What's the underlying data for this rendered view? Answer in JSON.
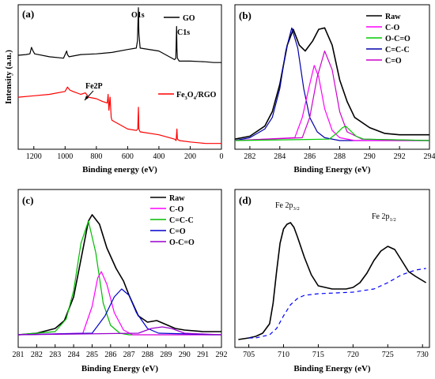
{
  "chart_data": [
    {
      "id": "a",
      "type": "line",
      "panel_label": "(a)",
      "xlabel": "Binding energy (eV)",
      "ylabel": "Intensity (a.u.)",
      "xlim": [
        1300,
        0
      ],
      "ylim": [
        0,
        1
      ],
      "xticks": [
        1200,
        1000,
        800,
        600,
        400,
        200,
        0
      ],
      "legend": [
        {
          "name": "GO",
          "color": "#000000"
        },
        {
          "name": "Fe3O4/RGO",
          "label_main": "Fe",
          "label_sub1": "3",
          "label_mid": "O",
          "label_sub2": "4",
          "label_end": "/RGO",
          "color": "#ff0000"
        }
      ],
      "annotations": [
        {
          "text": "O1s",
          "x": 531,
          "y": 0.96
        },
        {
          "text": "C1s",
          "x": 285,
          "y": 0.81
        },
        {
          "text": "Fe2P",
          "x": 760,
          "y": 0.405
        }
      ],
      "series": [
        {
          "name": "GO",
          "color": "#000000",
          "x": [
            1300,
            1250,
            1225,
            1215,
            1205,
            1195,
            1100,
            1010,
            1000,
            990,
            985,
            975,
            900,
            800,
            700,
            600,
            545,
            537,
            531,
            528,
            520,
            400,
            300,
            292,
            287,
            285,
            282,
            270,
            200,
            100,
            50,
            0
          ],
          "y": [
            0.65,
            0.655,
            0.66,
            0.705,
            0.68,
            0.66,
            0.64,
            0.63,
            0.655,
            0.68,
            0.655,
            0.64,
            0.655,
            0.66,
            0.67,
            0.69,
            0.7,
            0.75,
            0.98,
            0.8,
            0.7,
            0.68,
            0.62,
            0.63,
            0.85,
            0.7,
            0.63,
            0.61,
            0.61,
            0.605,
            0.6,
            0.6
          ]
        },
        {
          "name": "Fe3O4/RGO",
          "color": "#ff0000",
          "x": [
            1300,
            1200,
            1100,
            1000,
            985,
            970,
            950,
            900,
            870,
            850,
            800,
            760,
            730,
            725,
            720,
            712,
            705,
            700,
            600,
            545,
            535,
            531,
            528,
            520,
            400,
            300,
            290,
            285,
            282,
            270,
            200,
            100,
            50,
            0
          ],
          "y": [
            0.36,
            0.37,
            0.38,
            0.4,
            0.43,
            0.41,
            0.4,
            0.38,
            0.39,
            0.36,
            0.35,
            0.33,
            0.32,
            0.38,
            0.27,
            0.36,
            0.22,
            0.2,
            0.14,
            0.13,
            0.14,
            0.29,
            0.14,
            0.12,
            0.1,
            0.07,
            0.06,
            0.14,
            0.07,
            0.06,
            0.05,
            0.04,
            0.04,
            0.04
          ]
        }
      ]
    },
    {
      "id": "b",
      "type": "line",
      "panel_label": "(b)",
      "xlabel": "Binding Energy (eV)",
      "xlim": [
        281,
        294
      ],
      "ylim": [
        0,
        1
      ],
      "xticks": [
        282,
        284,
        286,
        288,
        290,
        292,
        294
      ],
      "legend": [
        {
          "name": "Raw",
          "color": "#000000"
        },
        {
          "name": "C-O",
          "color": "#ff00ff"
        },
        {
          "name": "O-C=O",
          "color": "#00cc00"
        },
        {
          "name": "C=C-C",
          "color": "#0000aa"
        },
        {
          "name": "C=O",
          "color": "#cc00cc"
        }
      ],
      "series": [
        {
          "name": "Raw",
          "color": "#000000",
          "x": [
            281,
            282,
            283,
            283.5,
            284,
            284.5,
            284.9,
            285.3,
            285.7,
            286.2,
            286.6,
            287,
            287.5,
            288,
            288.5,
            289,
            290,
            291,
            292,
            293,
            294
          ],
          "y": [
            0.07,
            0.09,
            0.16,
            0.26,
            0.45,
            0.72,
            0.83,
            0.72,
            0.68,
            0.75,
            0.83,
            0.84,
            0.72,
            0.48,
            0.33,
            0.22,
            0.15,
            0.11,
            0.1,
            0.1,
            0.1
          ]
        },
        {
          "name": "C=C-C",
          "color": "#0000aa",
          "x": [
            281,
            282,
            283,
            283.5,
            284,
            284.4,
            284.8,
            285.2,
            285.6,
            286,
            286.5,
            287,
            288,
            289,
            294
          ],
          "y": [
            0.06,
            0.08,
            0.14,
            0.22,
            0.42,
            0.68,
            0.84,
            0.7,
            0.42,
            0.22,
            0.12,
            0.08,
            0.06,
            0.06,
            0.06
          ]
        },
        {
          "name": "C-O",
          "color": "#ff00ff",
          "x": [
            281,
            285,
            285.5,
            286,
            286.3,
            286.6,
            287,
            287.5,
            288,
            289,
            294
          ],
          "y": [
            0.06,
            0.08,
            0.22,
            0.45,
            0.58,
            0.5,
            0.28,
            0.13,
            0.08,
            0.06,
            0.06
          ]
        },
        {
          "name": "C=O",
          "color": "#cc00cc",
          "x": [
            281,
            285.5,
            286,
            286.5,
            287,
            287.5,
            288,
            288.5,
            289.5,
            294
          ],
          "y": [
            0.06,
            0.08,
            0.22,
            0.5,
            0.68,
            0.55,
            0.26,
            0.12,
            0.07,
            0.06
          ]
        },
        {
          "name": "O-C=O",
          "color": "#00cc00",
          "x": [
            281,
            287.3,
            287.8,
            288.2,
            288.4,
            288.7,
            289.1,
            289.6,
            294
          ],
          "y": [
            0.06,
            0.07,
            0.11,
            0.15,
            0.16,
            0.13,
            0.09,
            0.07,
            0.06
          ]
        }
      ]
    },
    {
      "id": "c",
      "type": "line",
      "panel_label": "(c)",
      "xlabel": "Binding Energy (eV)",
      "xlim": [
        281,
        292
      ],
      "ylim": [
        0,
        1
      ],
      "xticks": [
        281,
        282,
        283,
        284,
        285,
        286,
        287,
        288,
        289,
        290,
        291,
        292
      ],
      "legend": [
        {
          "name": "Raw",
          "color": "#000000"
        },
        {
          "name": "C-O",
          "color": "#ff00ff"
        },
        {
          "name": "C=C-C",
          "color": "#00bb00"
        },
        {
          "name": "C=O",
          "color": "#0000cc"
        },
        {
          "name": "O-C=O",
          "color": "#9900cc"
        }
      ],
      "series": [
        {
          "name": "Raw",
          "color": "#000000",
          "x": [
            281,
            282,
            283,
            283.5,
            284,
            284.5,
            284.8,
            285,
            285.4,
            285.8,
            286.3,
            286.7,
            287,
            287.5,
            288,
            288.5,
            288.9,
            289.5,
            290,
            291,
            292
          ],
          "y": [
            0.08,
            0.09,
            0.12,
            0.17,
            0.32,
            0.62,
            0.8,
            0.84,
            0.78,
            0.63,
            0.5,
            0.42,
            0.33,
            0.2,
            0.16,
            0.17,
            0.15,
            0.12,
            0.11,
            0.1,
            0.1
          ]
        },
        {
          "name": "C=C-C",
          "color": "#00bb00",
          "x": [
            281,
            283,
            283.6,
            284,
            284.4,
            284.8,
            285.2,
            285.6,
            286,
            286.5,
            287,
            292
          ],
          "y": [
            0.08,
            0.1,
            0.18,
            0.36,
            0.66,
            0.8,
            0.6,
            0.28,
            0.14,
            0.09,
            0.08,
            0.08
          ]
        },
        {
          "name": "C-O",
          "color": "#ff00ff",
          "x": [
            281,
            284.5,
            285,
            285.3,
            285.5,
            285.8,
            286.2,
            286.7,
            287.2,
            292
          ],
          "y": [
            0.08,
            0.09,
            0.26,
            0.44,
            0.48,
            0.4,
            0.22,
            0.11,
            0.08,
            0.08
          ]
        },
        {
          "name": "C=O",
          "color": "#0000cc",
          "x": [
            281,
            285,
            285.7,
            286.2,
            286.6,
            287,
            287.4,
            288,
            288.6,
            292
          ],
          "y": [
            0.08,
            0.09,
            0.2,
            0.32,
            0.37,
            0.33,
            0.22,
            0.12,
            0.09,
            0.08
          ]
        },
        {
          "name": "O-C=O",
          "color": "#9900cc",
          "x": [
            281,
            287.5,
            288.2,
            288.8,
            289.3,
            290,
            292
          ],
          "y": [
            0.08,
            0.09,
            0.12,
            0.13,
            0.12,
            0.09,
            0.08
          ]
        }
      ]
    },
    {
      "id": "d",
      "type": "line",
      "panel_label": "(d)",
      "xlabel": "Binding Energy (eV)",
      "xlim": [
        703,
        731
      ],
      "ylim": [
        0,
        1
      ],
      "xticks": [
        705,
        710,
        715,
        720,
        725,
        730
      ],
      "annotations": [
        {
          "text_main": "Fe 2p",
          "text_sub": "3/2",
          "x": 710.6,
          "y": 0.86
        },
        {
          "text_main": "Fe 2p",
          "text_sub": "1/2",
          "x": 725,
          "y": 0.74
        }
      ],
      "series": [
        {
          "name": "raw",
          "color": "#000000",
          "x": [
            703.5,
            705,
            706,
            707,
            708,
            708.5,
            709,
            709.5,
            710,
            710.5,
            711,
            711.5,
            712,
            713,
            714,
            715,
            716,
            717,
            718,
            719,
            720,
            721,
            722,
            723,
            724,
            725,
            726,
            727,
            728,
            729,
            730.5
          ],
          "y": [
            0.05,
            0.06,
            0.07,
            0.09,
            0.15,
            0.28,
            0.48,
            0.66,
            0.75,
            0.78,
            0.79,
            0.76,
            0.7,
            0.57,
            0.46,
            0.39,
            0.38,
            0.37,
            0.37,
            0.37,
            0.38,
            0.41,
            0.47,
            0.55,
            0.61,
            0.64,
            0.62,
            0.55,
            0.48,
            0.45,
            0.41
          ]
        },
        {
          "name": "baseline",
          "color": "#0000ff",
          "dashed": true,
          "x": [
            705,
            706,
            707,
            708,
            709,
            710,
            711,
            712,
            713,
            715,
            720,
            723,
            725,
            727,
            729,
            730.5
          ],
          "y": [
            0.06,
            0.06,
            0.07,
            0.08,
            0.12,
            0.2,
            0.27,
            0.31,
            0.33,
            0.34,
            0.35,
            0.37,
            0.41,
            0.46,
            0.49,
            0.5
          ]
        }
      ]
    }
  ]
}
